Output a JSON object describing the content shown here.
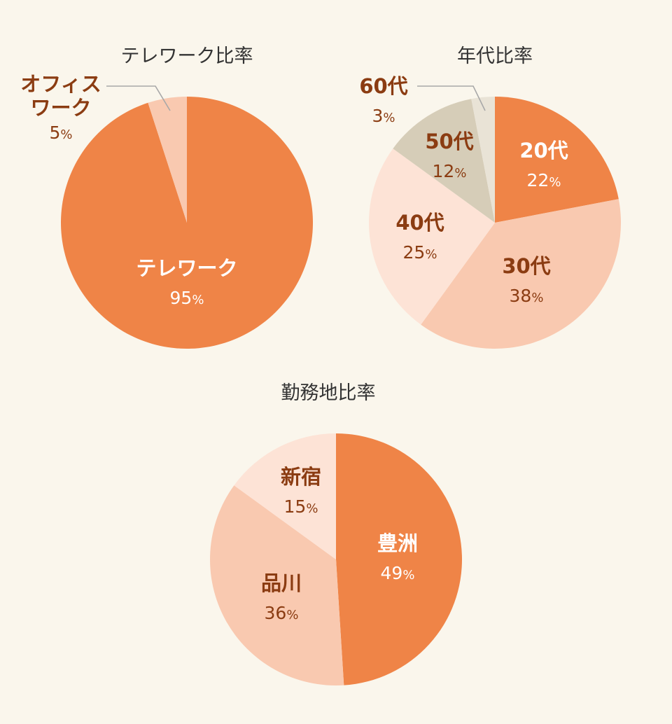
{
  "colors": {
    "background": "#faf6ec",
    "accent_dark_text": "#8b3c12",
    "light_text": "#ffffff",
    "title_text": "#333333",
    "leader_line": "#a8a8a8"
  },
  "chart_data": [
    {
      "type": "pie",
      "title": "テレワーク比率",
      "slices": [
        {
          "label": "テレワーク",
          "value": 95,
          "pct_text": "95",
          "color": "#ef8447",
          "text_color": "#ffffff"
        },
        {
          "label": "オフィス\nワーク",
          "value": 5,
          "pct_text": "5",
          "color": "#f9c9b0",
          "text_color": "#8b3c12",
          "outside": true
        }
      ]
    },
    {
      "type": "pie",
      "title": "年代比率",
      "slices": [
        {
          "label": "20代",
          "value": 22,
          "pct_text": "22",
          "color": "#ef8447",
          "text_color": "#ffffff"
        },
        {
          "label": "30代",
          "value": 38,
          "pct_text": "38",
          "color": "#f9c9b0",
          "text_color": "#8b3c12"
        },
        {
          "label": "40代",
          "value": 25,
          "pct_text": "25",
          "color": "#fde3d6",
          "text_color": "#8b3c12"
        },
        {
          "label": "50代",
          "value": 12,
          "pct_text": "12",
          "color": "#d6cdb8",
          "text_color": "#8b3c12"
        },
        {
          "label": "60代",
          "value": 3,
          "pct_text": "3",
          "color": "#e9e3d6",
          "text_color": "#8b3c12",
          "outside": true
        }
      ]
    },
    {
      "type": "pie",
      "title": "勤務地比率",
      "slices": [
        {
          "label": "豊洲",
          "value": 49,
          "pct_text": "49",
          "color": "#ef8447",
          "text_color": "#ffffff"
        },
        {
          "label": "品川",
          "value": 36,
          "pct_text": "36",
          "color": "#f9c9b0",
          "text_color": "#8b3c12"
        },
        {
          "label": "新宿",
          "value": 15,
          "pct_text": "15",
          "color": "#fde3d6",
          "text_color": "#8b3c12"
        }
      ]
    }
  ],
  "pct_suffix": "%"
}
